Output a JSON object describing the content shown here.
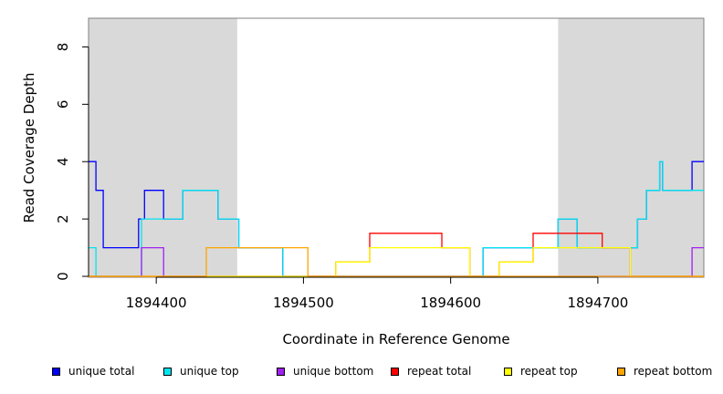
{
  "chart_data": {
    "type": "line",
    "title": "",
    "xlabel": "Coordinate in Reference Genome",
    "ylabel": "Read Coverage Depth",
    "xlim": [
      1894354,
      1894772
    ],
    "ylim": [
      0,
      9
    ],
    "x_ticks": [
      1894400,
      1894500,
      1894600,
      1894700
    ],
    "y_ticks": [
      0,
      2,
      4,
      6,
      8
    ],
    "shaded_regions": [
      [
        1894354,
        1894455
      ],
      [
        1894673,
        1894772
      ]
    ],
    "shade_color": "#d9d9d9",
    "legend_position": "bottom",
    "series": [
      {
        "name": "unique total",
        "color": "#0000ff",
        "steps": [
          [
            1894354,
            4
          ],
          [
            1894359,
            3
          ],
          [
            1894364,
            1
          ],
          [
            1894388,
            2
          ],
          [
            1894392,
            3
          ],
          [
            1894405,
            2
          ],
          [
            1894418,
            3
          ],
          [
            1894442,
            2
          ],
          [
            1894456,
            1
          ],
          [
            1894486,
            0
          ],
          [
            1894622,
            1
          ],
          [
            1894673,
            2
          ],
          [
            1894686,
            1
          ],
          [
            1894727,
            2
          ],
          [
            1894733,
            3
          ],
          [
            1894742,
            4
          ],
          [
            1894744,
            3
          ],
          [
            1894764,
            4
          ],
          [
            1894772,
            4
          ]
        ]
      },
      {
        "name": "unique top",
        "color": "#00e5ee",
        "steps": [
          [
            1894354,
            1
          ],
          [
            1894359,
            0
          ],
          [
            1894390,
            2
          ],
          [
            1894405,
            2
          ],
          [
            1894418,
            3
          ],
          [
            1894442,
            2
          ],
          [
            1894456,
            1
          ],
          [
            1894486,
            0
          ],
          [
            1894622,
            1
          ],
          [
            1894673,
            2
          ],
          [
            1894686,
            1
          ],
          [
            1894727,
            2
          ],
          [
            1894733,
            3
          ],
          [
            1894742,
            4
          ],
          [
            1894744,
            3
          ],
          [
            1894772,
            3
          ]
        ]
      },
      {
        "name": "unique bottom",
        "color": "#a020f0",
        "steps": [
          [
            1894354,
            0
          ],
          [
            1894390,
            1
          ],
          [
            1894405,
            0
          ],
          [
            1894764,
            1
          ],
          [
            1894772,
            1
          ]
        ]
      },
      {
        "name": "repeat total",
        "color": "#ff0000",
        "steps": [
          [
            1894354,
            0
          ],
          [
            1894522,
            0.5
          ],
          [
            1894545,
            1.5
          ],
          [
            1894594,
            1
          ],
          [
            1894613,
            0
          ],
          [
            1894633,
            0.5
          ],
          [
            1894656,
            1.5
          ],
          [
            1894703,
            1
          ],
          [
            1894722,
            0
          ],
          [
            1894772,
            0
          ]
        ]
      },
      {
        "name": "repeat top",
        "color": "#ffff00",
        "steps": [
          [
            1894354,
            0
          ],
          [
            1894522,
            0.5
          ],
          [
            1894545,
            1
          ],
          [
            1894594,
            1
          ],
          [
            1894613,
            0
          ],
          [
            1894633,
            0.5
          ],
          [
            1894656,
            1
          ],
          [
            1894703,
            1
          ],
          [
            1894722,
            0
          ],
          [
            1894772,
            0
          ]
        ]
      },
      {
        "name": "repeat bottom",
        "color": "#ffa500",
        "steps": [
          [
            1894354,
            0
          ],
          [
            1894434,
            1
          ],
          [
            1894456,
            1
          ],
          [
            1894486,
            1
          ],
          [
            1894503,
            0
          ],
          [
            1894772,
            0
          ]
        ]
      }
    ]
  }
}
